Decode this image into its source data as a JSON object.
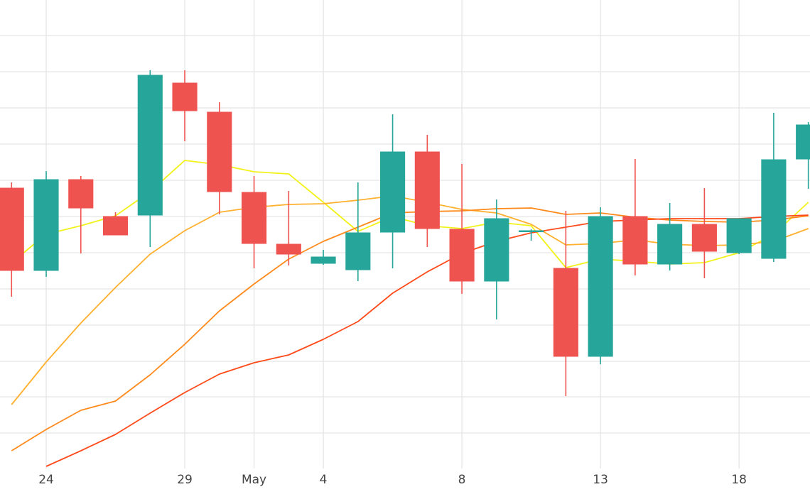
{
  "chart_data": {
    "type": "candlestick",
    "x": [
      -1.25,
      0,
      1.25,
      2.5,
      3.75,
      5,
      6.25,
      7.5,
      8.75,
      10,
      11.25,
      12.5,
      13.75,
      15,
      16.25,
      17.5,
      18.75,
      20,
      21.25,
      22.5,
      23.75,
      25,
      26.25,
      27.5
    ],
    "open": [
      395,
      279,
      407,
      355,
      357,
      543,
      502,
      389,
      316,
      289,
      280,
      333,
      446,
      337,
      264,
      334,
      282,
      158,
      355,
      288,
      344,
      304,
      296,
      436
    ],
    "high": [
      403,
      419,
      412,
      361,
      561,
      561,
      516,
      412,
      391,
      308,
      403,
      499,
      470,
      429,
      379,
      337,
      363,
      368,
      436,
      374,
      395,
      352,
      501,
      488
    ],
    "low": [
      242,
      270,
      303,
      329,
      312,
      461,
      358,
      282,
      286,
      287,
      264,
      282,
      312,
      246,
      210,
      321,
      102,
      147,
      272,
      279,
      268,
      302,
      291,
      394
    ],
    "close": [
      279,
      407,
      367,
      329,
      554,
      504,
      390,
      317,
      302,
      298,
      332,
      446,
      338,
      264,
      352,
      335,
      158,
      355,
      288,
      344,
      306,
      352,
      435,
      484
    ],
    "increasing_color": "#26a69a",
    "decreasing_color": "#ef5350",
    "series": [
      {
        "color": "#f2f21a",
        "values": [
          290,
          330,
          342,
          356,
          390,
          434,
          428,
          418,
          415,
          375,
          334,
          355,
          342,
          338,
          347,
          342,
          283,
          295,
          292,
          288,
          290,
          304,
          330,
          375
        ]
      },
      {
        "color": "#ffb02e",
        "values": [
          90,
          150,
          205,
          255,
          302,
          335,
          361,
          368,
          372,
          373,
          378,
          384,
          375,
          365,
          360,
          344,
          315,
          317,
          322,
          316,
          314,
          315,
          320,
          338
        ]
      },
      {
        "color": "#ff8a1c",
        "values": [
          25,
          55,
          82,
          95,
          132,
          175,
          222,
          260,
          295,
          320,
          340,
          360,
          362,
          363,
          366,
          367,
          358,
          360,
          354,
          350,
          348,
          347,
          350,
          356
        ]
      },
      {
        "color": "#ff4a1a",
        "values": [
          null,
          3,
          25,
          48,
          78,
          107,
          133,
          149,
          160,
          182,
          207,
          247,
          277,
          303,
          320,
          332,
          340,
          348,
          350,
          352,
          352,
          352,
          355,
          357
        ]
      }
    ],
    "xlim": [
      -1.667,
      27.56
    ],
    "xticks": [
      {
        "value": 0,
        "label": "24"
      },
      {
        "value": 5,
        "label": "29"
      },
      {
        "value": 7.5,
        "label": "May"
      },
      {
        "value": 10,
        "label": "4"
      },
      {
        "value": 15,
        "label": "8"
      },
      {
        "value": 20,
        "label": "13"
      },
      {
        "value": 25,
        "label": "18"
      }
    ],
    "ylim": [
      0,
      660
    ],
    "yticks": [
      50,
      101,
      151,
      202,
      253,
      304,
      355,
      406,
      457,
      508,
      559,
      610
    ],
    "grid": true
  }
}
